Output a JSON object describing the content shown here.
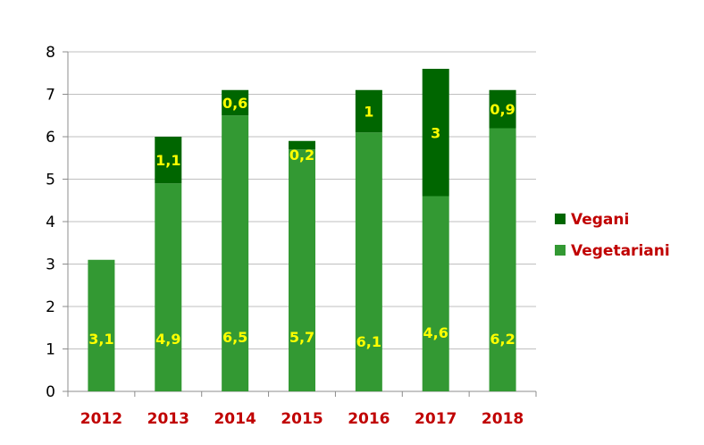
{
  "chart_data": {
    "type": "bar",
    "stacked": true,
    "categories": [
      "2012",
      "2013",
      "2014",
      "2015",
      "2016",
      "2017",
      "2018"
    ],
    "series": [
      {
        "name": "Vegetariani",
        "values": [
          3.1,
          4.9,
          6.5,
          5.7,
          6.1,
          4.6,
          6.2
        ],
        "labels": [
          "3,1",
          "4,9",
          "6,5",
          "5,7",
          "6,1",
          "4,6",
          "6,2"
        ],
        "color": "#339933"
      },
      {
        "name": "Vegani",
        "values": [
          null,
          1.1,
          0.6,
          0.2,
          1,
          3,
          0.9
        ],
        "labels": [
          "",
          "1,1",
          "0,6",
          "0,2",
          "1",
          "3",
          "0,9"
        ],
        "color": "#006600"
      }
    ],
    "yticks": [
      "0",
      "1",
      "2",
      "3",
      "4",
      "5",
      "6",
      "7",
      "8"
    ],
    "ylim": [
      0,
      8
    ],
    "grid": true,
    "legend_position": "right",
    "colors": {
      "tick_x": "#c00000",
      "legend_text": "#c00000",
      "data_label": "#ffff00",
      "grid": "#bfbfbf"
    }
  }
}
